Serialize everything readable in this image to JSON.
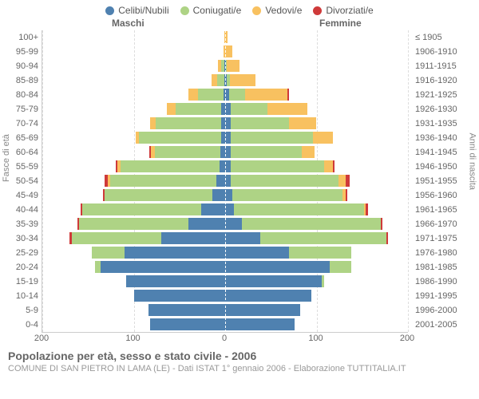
{
  "legend": [
    {
      "label": "Celibi/Nubili",
      "color": "#4f81b0"
    },
    {
      "label": "Coniugati/e",
      "color": "#aed385"
    },
    {
      "label": "Vedovi/e",
      "color": "#f8c160"
    },
    {
      "label": "Divorziati/e",
      "color": "#cf3a3a"
    }
  ],
  "headers": {
    "m": "Maschi",
    "f": "Femmine"
  },
  "axis_labels": {
    "left": "Fasce di età",
    "right": "Anni di nascita"
  },
  "x_ticks": [
    -200,
    -100,
    0,
    100,
    200
  ],
  "x_tick_labels": [
    "200",
    "100",
    "0",
    "100",
    "200"
  ],
  "x_domain": [
    -200,
    200
  ],
  "colors": {
    "celibi": "#4f81b0",
    "coniugati": "#aed385",
    "vedovi": "#f8c160",
    "divorziati": "#cf3a3a",
    "grid": "#dddddd",
    "bg": "#ffffff"
  },
  "footer": {
    "title": "Popolazione per età, sesso e stato civile - 2006",
    "subtitle": "COMUNE DI SAN PIETRO IN LAMA (LE) - Dati ISTAT 1° gennaio 2006 - Elaborazione TUTTITALIA.IT"
  },
  "rows": [
    {
      "age": "100+",
      "year": "≤ 1905",
      "m": {
        "cel": 0,
        "con": 0,
        "ved": 1,
        "div": 0
      },
      "f": {
        "cel": 0,
        "con": 0,
        "ved": 3,
        "div": 0
      }
    },
    {
      "age": "95-99",
      "year": "1906-1910",
      "m": {
        "cel": 0,
        "con": 0,
        "ved": 2,
        "div": 0
      },
      "f": {
        "cel": 0,
        "con": 0,
        "ved": 8,
        "div": 0
      }
    },
    {
      "age": "90-94",
      "year": "1911-1915",
      "m": {
        "cel": 1,
        "con": 3,
        "ved": 4,
        "div": 0
      },
      "f": {
        "cel": 1,
        "con": 1,
        "ved": 14,
        "div": 0
      }
    },
    {
      "age": "85-89",
      "year": "1916-1920",
      "m": {
        "cel": 1,
        "con": 8,
        "ved": 6,
        "div": 0
      },
      "f": {
        "cel": 2,
        "con": 3,
        "ved": 28,
        "div": 0
      }
    },
    {
      "age": "80-84",
      "year": "1921-1925",
      "m": {
        "cel": 2,
        "con": 28,
        "ved": 10,
        "div": 0
      },
      "f": {
        "cel": 4,
        "con": 18,
        "ved": 46,
        "div": 2
      }
    },
    {
      "age": "75-79",
      "year": "1926-1930",
      "m": {
        "cel": 4,
        "con": 50,
        "ved": 10,
        "div": 0
      },
      "f": {
        "cel": 6,
        "con": 40,
        "ved": 44,
        "div": 0
      }
    },
    {
      "age": "70-74",
      "year": "1931-1935",
      "m": {
        "cel": 4,
        "con": 72,
        "ved": 6,
        "div": 0
      },
      "f": {
        "cel": 6,
        "con": 64,
        "ved": 30,
        "div": 0
      }
    },
    {
      "age": "65-69",
      "year": "1936-1940",
      "m": {
        "cel": 4,
        "con": 90,
        "ved": 4,
        "div": 0
      },
      "f": {
        "cel": 6,
        "con": 90,
        "ved": 22,
        "div": 0
      }
    },
    {
      "age": "60-64",
      "year": "1941-1945",
      "m": {
        "cel": 5,
        "con": 72,
        "ved": 4,
        "div": 2
      },
      "f": {
        "cel": 6,
        "con": 78,
        "ved": 14,
        "div": 0
      }
    },
    {
      "age": "55-59",
      "year": "1946-1950",
      "m": {
        "cel": 6,
        "con": 108,
        "ved": 4,
        "div": 2
      },
      "f": {
        "cel": 6,
        "con": 102,
        "ved": 10,
        "div": 2
      }
    },
    {
      "age": "50-54",
      "year": "1951-1955",
      "m": {
        "cel": 10,
        "con": 116,
        "ved": 2,
        "div": 4
      },
      "f": {
        "cel": 6,
        "con": 118,
        "ved": 8,
        "div": 4
      }
    },
    {
      "age": "45-49",
      "year": "1956-1960",
      "m": {
        "cel": 14,
        "con": 118,
        "ved": 0,
        "div": 2
      },
      "f": {
        "cel": 8,
        "con": 120,
        "ved": 4,
        "div": 2
      }
    },
    {
      "age": "40-44",
      "year": "1961-1965",
      "m": {
        "cel": 26,
        "con": 130,
        "ved": 0,
        "div": 2
      },
      "f": {
        "cel": 10,
        "con": 142,
        "ved": 2,
        "div": 2
      }
    },
    {
      "age": "35-39",
      "year": "1966-1970",
      "m": {
        "cel": 40,
        "con": 120,
        "ved": 0,
        "div": 2
      },
      "f": {
        "cel": 18,
        "con": 152,
        "ved": 0,
        "div": 2
      }
    },
    {
      "age": "30-34",
      "year": "1971-1975",
      "m": {
        "cel": 70,
        "con": 98,
        "ved": 0,
        "div": 2
      },
      "f": {
        "cel": 38,
        "con": 138,
        "ved": 0,
        "div": 2
      }
    },
    {
      "age": "25-29",
      "year": "1976-1980",
      "m": {
        "cel": 110,
        "con": 36,
        "ved": 0,
        "div": 0
      },
      "f": {
        "cel": 70,
        "con": 68,
        "ved": 0,
        "div": 0
      }
    },
    {
      "age": "20-24",
      "year": "1981-1985",
      "m": {
        "cel": 136,
        "con": 6,
        "ved": 0,
        "div": 0
      },
      "f": {
        "cel": 114,
        "con": 24,
        "ved": 0,
        "div": 0
      }
    },
    {
      "age": "15-19",
      "year": "1986-1990",
      "m": {
        "cel": 108,
        "con": 0,
        "ved": 0,
        "div": 0
      },
      "f": {
        "cel": 106,
        "con": 2,
        "ved": 0,
        "div": 0
      }
    },
    {
      "age": "10-14",
      "year": "1991-1995",
      "m": {
        "cel": 100,
        "con": 0,
        "ved": 0,
        "div": 0
      },
      "f": {
        "cel": 94,
        "con": 0,
        "ved": 0,
        "div": 0
      }
    },
    {
      "age": "5-9",
      "year": "1996-2000",
      "m": {
        "cel": 84,
        "con": 0,
        "ved": 0,
        "div": 0
      },
      "f": {
        "cel": 82,
        "con": 0,
        "ved": 0,
        "div": 0
      }
    },
    {
      "age": "0-4",
      "year": "2001-2005",
      "m": {
        "cel": 82,
        "con": 0,
        "ved": 0,
        "div": 0
      },
      "f": {
        "cel": 76,
        "con": 0,
        "ved": 0,
        "div": 0
      }
    }
  ]
}
